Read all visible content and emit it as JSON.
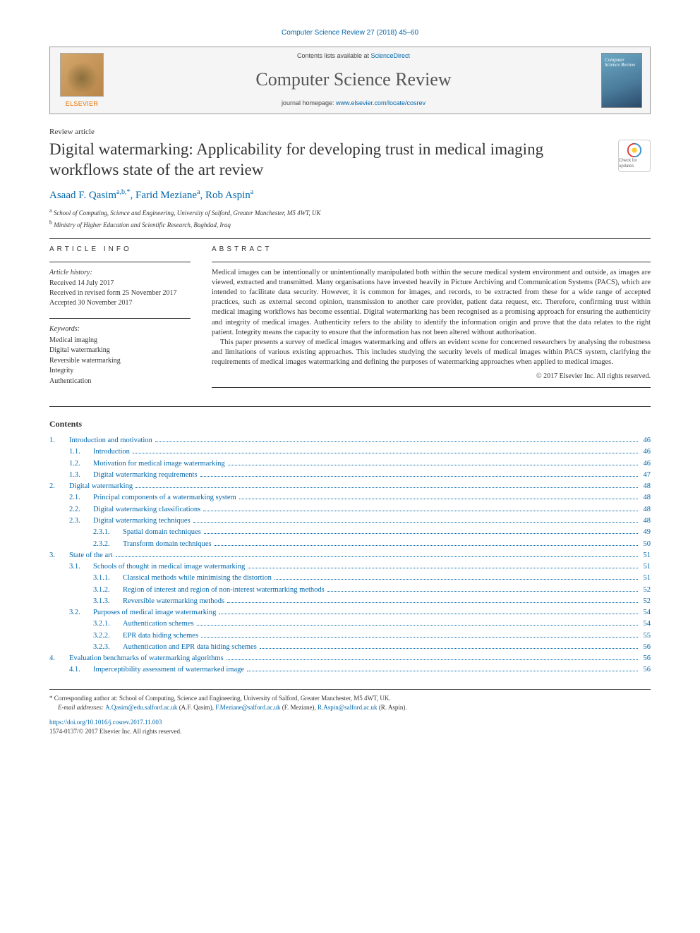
{
  "header": {
    "journal_ref": "Computer Science Review 27 (2018) 45–60",
    "contents_prefix": "Contents lists available at ",
    "contents_link": "ScienceDirect",
    "journal_title": "Computer Science Review",
    "homepage_prefix": "journal homepage: ",
    "homepage_link": "www.elsevier.com/locate/cosrev",
    "publisher": "ELSEVIER"
  },
  "article": {
    "type": "Review article",
    "title": "Digital watermarking: Applicability for developing trust in medical imaging workflows state of the art review",
    "crossmark": "Check for updates"
  },
  "authors": {
    "line_html": "Asaad F. Qasim",
    "a1_sup": "a,b,",
    "star": "*",
    "sep1": ", Farid Meziane",
    "a2_sup": "a",
    "sep2": ", Rob Aspin",
    "a3_sup": "a"
  },
  "affiliations": [
    {
      "sup": "a",
      "text": "School of Computing, Science and Engineering, University of Salford, Greater Manchester, M5 4WT, UK"
    },
    {
      "sup": "b",
      "text": "Ministry of Higher Education and Scientific Research, Baghdad, Iraq"
    }
  ],
  "info": {
    "article_info_head": "ARTICLE INFO",
    "abstract_head": "ABSTRACT",
    "history_label": "Article history:",
    "history": [
      "Received 14 July 2017",
      "Received in revised form 25 November 2017",
      "Accepted 30 November 2017"
    ],
    "keywords_label": "Keywords:",
    "keywords": [
      "Medical imaging",
      "Digital watermarking",
      "Reversible watermarking",
      "Integrity",
      "Authentication"
    ]
  },
  "abstract": {
    "p1": "Medical images can be intentionally or unintentionally manipulated both within the secure medical system environment and outside, as images are viewed, extracted and transmitted. Many organisations have invested heavily in Picture Archiving and Communication Systems (PACS), which are intended to facilitate data security. However, it is common for images, and records, to be extracted from these for a wide range of accepted practices, such as external second opinion, transmission to another care provider, patient data request, etc. Therefore, confirming trust within medical imaging workflows has become essential. Digital watermarking has been recognised as a promising approach for ensuring the authenticity and integrity of medical images. Authenticity refers to the ability to identify the information origin and prove that the data relates to the right patient. Integrity means the capacity to ensure that the information has not been altered without authorisation.",
    "p2": "This paper presents a survey of medical images watermarking and offers an evident scene for concerned researchers by analysing the robustness and limitations of various existing approaches. This includes studying the security levels of medical images within PACS system, clarifying the requirements of medical images watermarking and defining the purposes of watermarking approaches when applied to medical images.",
    "copyright": "© 2017 Elsevier Inc. All rights reserved."
  },
  "contents_label": "Contents",
  "toc": [
    {
      "lvl": 1,
      "num": "1.",
      "label": "Introduction and motivation",
      "page": "46"
    },
    {
      "lvl": 2,
      "num": "1.1.",
      "label": "Introduction",
      "page": "46"
    },
    {
      "lvl": 2,
      "num": "1.2.",
      "label": "Motivation for medical image watermarking",
      "page": "46"
    },
    {
      "lvl": 2,
      "num": "1.3.",
      "label": "Digital watermarking requirements",
      "page": "47"
    },
    {
      "lvl": 1,
      "num": "2.",
      "label": "Digital watermarking",
      "page": "48"
    },
    {
      "lvl": 2,
      "num": "2.1.",
      "label": "Principal components of a watermarking system",
      "page": "48"
    },
    {
      "lvl": 2,
      "num": "2.2.",
      "label": "Digital watermarking classifications",
      "page": "48"
    },
    {
      "lvl": 2,
      "num": "2.3.",
      "label": "Digital watermarking techniques",
      "page": "48"
    },
    {
      "lvl": 3,
      "num": "2.3.1.",
      "label": "Spatial domain techniques",
      "page": "49"
    },
    {
      "lvl": 3,
      "num": "2.3.2.",
      "label": "Transform domain techniques",
      "page": "50"
    },
    {
      "lvl": 1,
      "num": "3.",
      "label": "State of the art",
      "page": "51"
    },
    {
      "lvl": 2,
      "num": "3.1.",
      "label": "Schools of thought in medical image watermarking",
      "page": "51"
    },
    {
      "lvl": 3,
      "num": "3.1.1.",
      "label": "Classical methods while minimising the distortion",
      "page": "51"
    },
    {
      "lvl": 3,
      "num": "3.1.2.",
      "label": "Region of interest and region of non-interest watermarking methods",
      "page": "52"
    },
    {
      "lvl": 3,
      "num": "3.1.3.",
      "label": "Reversible watermarking methods",
      "page": "52"
    },
    {
      "lvl": 2,
      "num": "3.2.",
      "label": "Purposes of medical image watermarking",
      "page": "54"
    },
    {
      "lvl": 3,
      "num": "3.2.1.",
      "label": "Authentication schemes",
      "page": "54"
    },
    {
      "lvl": 3,
      "num": "3.2.2.",
      "label": "EPR data hiding schemes",
      "page": "55"
    },
    {
      "lvl": 3,
      "num": "3.2.3.",
      "label": "Authentication and EPR data hiding schemes",
      "page": "56"
    },
    {
      "lvl": 1,
      "num": "4.",
      "label": "Evaluation benchmarks of watermarking algorithms",
      "page": "56"
    },
    {
      "lvl": 2,
      "num": "4.1.",
      "label": "Imperceptibility assessment of watermarked image",
      "page": "56"
    }
  ],
  "footnotes": {
    "corr_prefix": "* Corresponding author at: ",
    "corr_text": "School of Computing, Science and Engineering, University of Salford, Greater Manchester, M5 4WT, UK.",
    "email_prefix": "E-mail addresses: ",
    "emails": [
      {
        "addr": "A.Qasim@edu.salford.ac.uk",
        "who": "(A.F. Qasim)"
      },
      {
        "addr": "F.Meziane@salford.ac.uk",
        "who": "(F. Meziane)"
      },
      {
        "addr": "R.Aspin@salford.ac.uk",
        "who": "(R. Aspin)"
      }
    ],
    "doi": "https://doi.org/10.1016/j.cosrev.2017.11.003",
    "issn_line": "1574-0137/© 2017 Elsevier Inc. All rights reserved."
  },
  "colors": {
    "link": "#0066aa",
    "text": "#333333",
    "elsevier": "#e87400"
  }
}
